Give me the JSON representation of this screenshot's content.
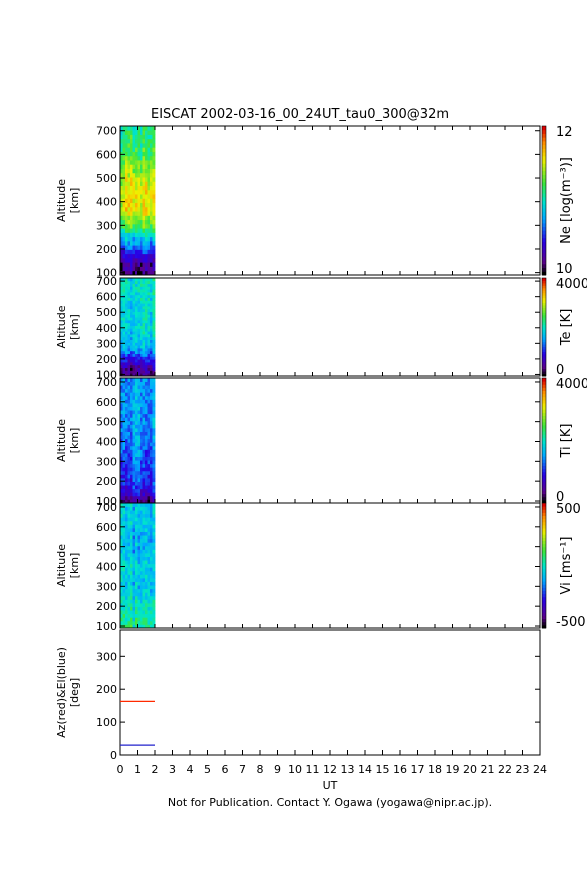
{
  "title": "EISCAT 2002-03-16_00_24UT_tau0_300@32m",
  "footer": "Not for Publication. Contact Y. Ogawa (yogawa@nipr.ac.jp).",
  "chart_data": {
    "type": "heatmap",
    "xlabel": "UT",
    "xlim": [
      0,
      24
    ],
    "x_ticks": [
      "0",
      "1",
      "2",
      "3",
      "4",
      "5",
      "6",
      "7",
      "8",
      "9",
      "10",
      "11",
      "12",
      "13",
      "14",
      "15",
      "16",
      "17",
      "18",
      "19",
      "20",
      "21",
      "22",
      "23",
      "24"
    ],
    "data_coverage_ut": [
      0,
      2
    ],
    "panels": [
      {
        "id": "ne",
        "ylabel": "Altitude\n[km]",
        "ylim": [
          90,
          720
        ],
        "y_ticks": [
          "100",
          "200",
          "300",
          "400",
          "500",
          "600",
          "700"
        ],
        "colorbar_label": "Ne [log(m⁻³)]",
        "colorbar_min": "10",
        "colorbar_max": "12",
        "profile": [
          {
            "alt": 100,
            "value": 0.05
          },
          {
            "alt": 150,
            "value": 0.12
          },
          {
            "alt": 200,
            "value": 0.28
          },
          {
            "alt": 250,
            "value": 0.42
          },
          {
            "alt": 300,
            "value": 0.62
          },
          {
            "alt": 350,
            "value": 0.74
          },
          {
            "alt": 400,
            "value": 0.78
          },
          {
            "alt": 450,
            "value": 0.76
          },
          {
            "alt": 500,
            "value": 0.72
          },
          {
            "alt": 550,
            "value": 0.66
          },
          {
            "alt": 600,
            "value": 0.6
          },
          {
            "alt": 700,
            "value": 0.55
          }
        ]
      },
      {
        "id": "te",
        "ylabel": "Altitude\n[km]",
        "ylim": [
          90,
          720
        ],
        "y_ticks": [
          "100",
          "200",
          "300",
          "400",
          "500",
          "600",
          "700"
        ],
        "colorbar_label": "Te [K]",
        "colorbar_min": "0",
        "colorbar_max": "4000",
        "profile": [
          {
            "alt": 100,
            "value": 0.06
          },
          {
            "alt": 150,
            "value": 0.12
          },
          {
            "alt": 200,
            "value": 0.22
          },
          {
            "alt": 250,
            "value": 0.36
          },
          {
            "alt": 300,
            "value": 0.42
          },
          {
            "alt": 400,
            "value": 0.45
          },
          {
            "alt": 500,
            "value": 0.46
          },
          {
            "alt": 600,
            "value": 0.47
          },
          {
            "alt": 700,
            "value": 0.48
          }
        ]
      },
      {
        "id": "ti",
        "ylabel": "Altitude\n[km]",
        "ylim": [
          90,
          720
        ],
        "y_ticks": [
          "100",
          "200",
          "300",
          "400",
          "500",
          "600",
          "700"
        ],
        "colorbar_label": "Ti [K]",
        "colorbar_min": "0",
        "colorbar_max": "4000",
        "profile": [
          {
            "alt": 100,
            "value": 0.08
          },
          {
            "alt": 150,
            "value": 0.22
          },
          {
            "alt": 200,
            "value": 0.28
          },
          {
            "alt": 300,
            "value": 0.32
          },
          {
            "alt": 400,
            "value": 0.35
          },
          {
            "alt": 500,
            "value": 0.37
          },
          {
            "alt": 600,
            "value": 0.38
          },
          {
            "alt": 700,
            "value": 0.38
          }
        ]
      },
      {
        "id": "vi",
        "ylabel": "Altitude\n[km]",
        "ylim": [
          90,
          720
        ],
        "y_ticks": [
          "100",
          "200",
          "300",
          "400",
          "500",
          "600",
          "700"
        ],
        "colorbar_label": "Vi [ms⁻¹]",
        "colorbar_min": "-500",
        "colorbar_max": "500",
        "profile": [
          {
            "alt": 100,
            "value": 0.55
          },
          {
            "alt": 200,
            "value": 0.48
          },
          {
            "alt": 300,
            "value": 0.42
          },
          {
            "alt": 400,
            "value": 0.45
          },
          {
            "alt": 500,
            "value": 0.4
          },
          {
            "alt": 600,
            "value": 0.42
          },
          {
            "alt": 700,
            "value": 0.43
          }
        ]
      }
    ],
    "pointing": {
      "ylabel": "Az(red)&El(blue)\n[deg]",
      "ylim": [
        0,
        380
      ],
      "y_ticks": [
        "0",
        "100",
        "200",
        "300"
      ],
      "series": [
        {
          "color": "#ff2a00",
          "x": [
            0,
            2
          ],
          "y": [
            163,
            163
          ]
        },
        {
          "color": "#2222cc",
          "x": [
            0,
            2
          ],
          "y": [
            30,
            30
          ]
        }
      ]
    }
  }
}
